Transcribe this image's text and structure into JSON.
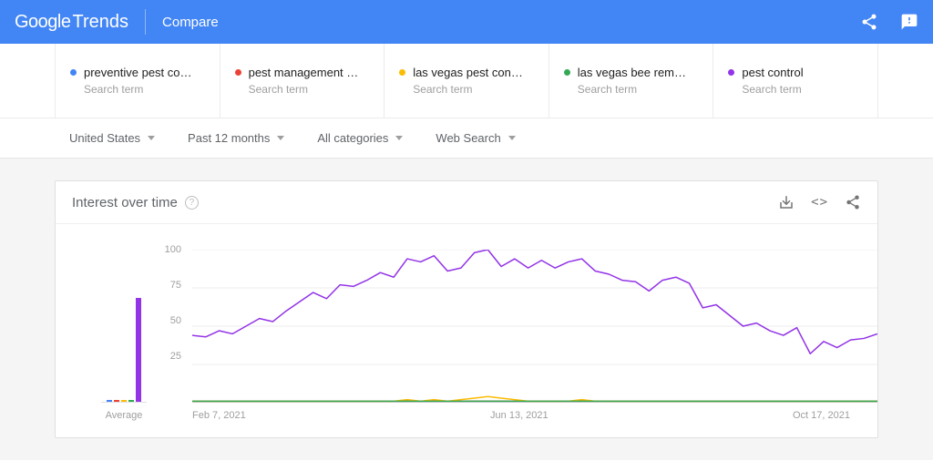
{
  "header": {
    "logo_google": "Google",
    "logo_trends": "Trends",
    "compare": "Compare"
  },
  "terms": [
    {
      "dot_color": "#4285f4",
      "name": "preventive pest co…",
      "sub": "Search term"
    },
    {
      "dot_color": "#ea4335",
      "name": "pest management …",
      "sub": "Search term"
    },
    {
      "dot_color": "#fbbc04",
      "name": "las vegas pest con…",
      "sub": "Search term"
    },
    {
      "dot_color": "#34a853",
      "name": "las vegas bee rem…",
      "sub": "Search term"
    },
    {
      "dot_color": "#9334e6",
      "name": "pest control",
      "sub": "Search term"
    }
  ],
  "filters": {
    "region": "United States",
    "time": "Past 12 months",
    "category": "All categories",
    "search_type": "Web Search"
  },
  "chart": {
    "type": "line",
    "title": "Interest over time",
    "y_ticks": [
      100,
      75,
      50,
      25
    ],
    "ylim": [
      0,
      100
    ],
    "x_labels": [
      "Feb 7, 2021",
      "Jun 13, 2021",
      "Oct 17, 2021"
    ],
    "grid_color": "#ececec",
    "baseline_color": "#e0e0e0",
    "background_color": "#ffffff",
    "axis_label_color": "#9e9e9e",
    "axis_fontsize": 11,
    "title_fontsize": 15,
    "line_width": 1.5,
    "averages": [
      {
        "color": "#4285f4",
        "value": 1
      },
      {
        "color": "#ea4335",
        "value": 1
      },
      {
        "color": "#fbbc04",
        "value": 1
      },
      {
        "color": "#34a853",
        "value": 1
      },
      {
        "color": "#9334e6",
        "value": 68
      }
    ],
    "average_label": "Average",
    "series": [
      {
        "name": "preventive pest control",
        "color": "#4285f4",
        "values": [
          1,
          1,
          1,
          1,
          1,
          1,
          1,
          1,
          1,
          1,
          1,
          1,
          1,
          1,
          1,
          1,
          1,
          1,
          1,
          1,
          1,
          1,
          1,
          1,
          1,
          1,
          1,
          1,
          1,
          1,
          1,
          1,
          1,
          1,
          1,
          1,
          1,
          1,
          1,
          1,
          1,
          1,
          1,
          1,
          1,
          1,
          1,
          1,
          1,
          1,
          1,
          1
        ]
      },
      {
        "name": "pest management",
        "color": "#ea4335",
        "values": [
          1,
          1,
          1,
          1,
          1,
          1,
          1,
          1,
          1,
          1,
          1,
          1,
          1,
          1,
          1,
          1,
          1,
          1,
          1,
          1,
          1,
          1,
          1,
          1,
          1,
          1,
          1,
          1,
          1,
          1,
          1,
          1,
          1,
          1,
          1,
          1,
          1,
          1,
          1,
          1,
          1,
          1,
          1,
          1,
          1,
          1,
          1,
          1,
          1,
          1,
          1,
          1
        ]
      },
      {
        "name": "las vegas pest control",
        "color": "#fbbc04",
        "values": [
          1,
          1,
          1,
          1,
          1,
          1,
          1,
          1,
          1,
          1,
          1,
          1,
          1,
          1,
          1,
          1,
          2,
          1,
          2,
          1,
          2,
          3,
          4,
          3,
          2,
          1,
          1,
          1,
          1,
          2,
          1,
          1,
          1,
          1,
          1,
          1,
          1,
          1,
          1,
          1,
          1,
          1,
          1,
          1,
          1,
          1,
          1,
          1,
          1,
          1,
          1,
          1
        ]
      },
      {
        "name": "las vegas bee removal",
        "color": "#34a853",
        "values": [
          1,
          1,
          1,
          1,
          1,
          1,
          1,
          1,
          1,
          1,
          1,
          1,
          1,
          1,
          1,
          1,
          1,
          1,
          1,
          1,
          1,
          1,
          1,
          1,
          1,
          1,
          1,
          1,
          1,
          1,
          1,
          1,
          1,
          1,
          1,
          1,
          1,
          1,
          1,
          1,
          1,
          1,
          1,
          1,
          1,
          1,
          1,
          1,
          1,
          1,
          1,
          1
        ]
      },
      {
        "name": "pest control",
        "color": "#9334e6",
        "values": [
          44,
          43,
          47,
          45,
          50,
          55,
          53,
          60,
          66,
          72,
          68,
          77,
          76,
          80,
          85,
          82,
          94,
          92,
          96,
          86,
          88,
          98,
          100,
          89,
          94,
          88,
          93,
          88,
          92,
          94,
          86,
          84,
          80,
          79,
          73,
          80,
          82,
          78,
          62,
          64,
          57,
          50,
          52,
          47,
          44,
          49,
          32,
          40,
          36,
          41,
          42,
          45
        ]
      }
    ]
  }
}
